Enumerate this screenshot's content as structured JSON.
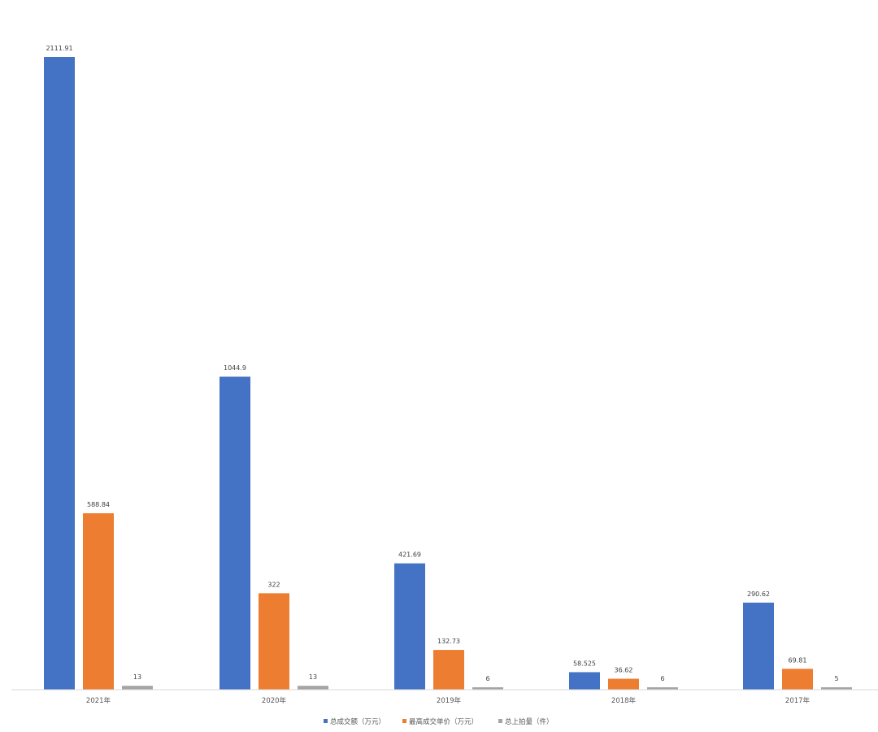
{
  "chart_data": {
    "type": "bar",
    "categories": [
      "2021年",
      "2020年",
      "2019年",
      "2018年",
      "2017年"
    ],
    "series": [
      {
        "name": "总成交额（万元）",
        "color": "#4472C4",
        "values": [
          2111.91,
          1044.9,
          421.69,
          58.525,
          290.62
        ],
        "labels": [
          "2111.91",
          "1044.9",
          "421.69",
          "58.525",
          "290.62"
        ]
      },
      {
        "name": "最高成交单价（万元）",
        "color": "#ED7D31",
        "values": [
          588.84,
          322,
          132.73,
          36.62,
          69.81
        ],
        "labels": [
          "588.84",
          "322",
          "132.73",
          "36.62",
          "69.81"
        ]
      },
      {
        "name": "总上拍量（件）",
        "color": "#A5A5A5",
        "values": [
          13,
          13,
          6,
          6,
          5
        ],
        "labels": [
          "13",
          "13",
          "6",
          "6",
          "5"
        ]
      }
    ],
    "ylim": [
      0,
      2111.91
    ],
    "grid": false,
    "legend_position": "bottom"
  }
}
